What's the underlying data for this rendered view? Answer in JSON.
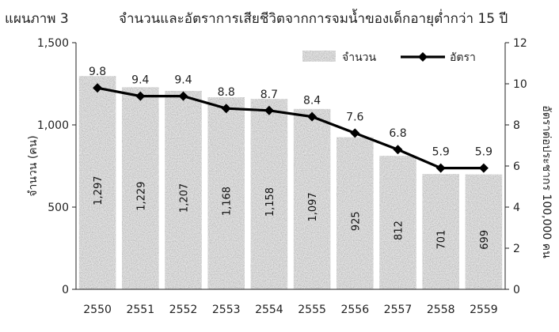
{
  "figure_label": "แผนภาพ 3",
  "chart_data": {
    "type": "bar",
    "title": "จำนวนและอัตราการเสียชีวิตจากการจมน้ำของเด็กอายุต่ำกว่า 15 ปี",
    "categories": [
      "2550",
      "2551",
      "2552",
      "2553",
      "2554",
      "2555",
      "2556",
      "2557",
      "2558",
      "2559"
    ],
    "series": [
      {
        "name": "จำนวน",
        "type": "bar",
        "axis": "left",
        "values": [
          1297,
          1229,
          1207,
          1168,
          1158,
          1097,
          925,
          812,
          701,
          699
        ],
        "labels": [
          "1,297",
          "1,229",
          "1,207",
          "1,168",
          "1,158",
          "1,097",
          "925",
          "812",
          "701",
          "699"
        ]
      },
      {
        "name": "อัตรา",
        "type": "line",
        "axis": "right",
        "values": [
          9.8,
          9.4,
          9.4,
          8.8,
          8.7,
          8.4,
          7.6,
          6.8,
          5.9,
          5.9
        ],
        "labels": [
          "9.8",
          "9.4",
          "9.4",
          "8.8",
          "8.7",
          "8.4",
          "7.6",
          "6.8",
          "5.9",
          "5.9"
        ]
      }
    ],
    "ylabel": "จำนวน (คน)",
    "y2label": "อัตราต่อประชากร 100,000 คน",
    "ylim": [
      0,
      1500
    ],
    "y2lim": [
      0,
      12
    ],
    "yticks": [
      "0",
      "500",
      "1,000",
      "1,500"
    ],
    "y2ticks": [
      "0",
      "2",
      "4",
      "6",
      "8",
      "10",
      "12"
    ],
    "legend": "top-right",
    "grid": false,
    "colors": {
      "bar": "#8a8a8a",
      "line": "#000000"
    }
  }
}
